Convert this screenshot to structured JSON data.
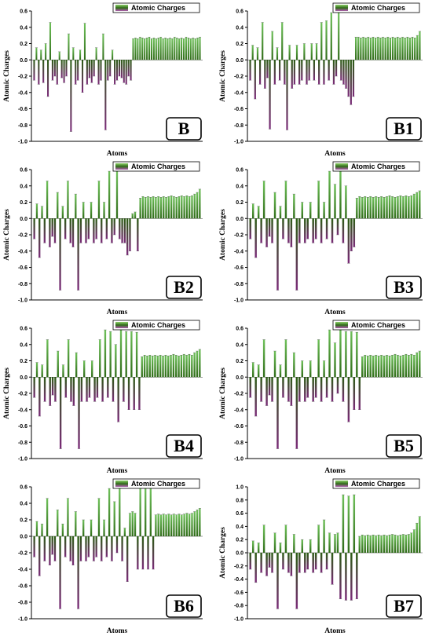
{
  "figure": {
    "panels": [
      "B",
      "B1",
      "B2",
      "B3",
      "B4",
      "B5",
      "B6",
      "B7"
    ],
    "colors": {
      "bar_top": "#6fc15a",
      "bar_mid": "#2f6b18",
      "bar_neg": "#2a5d12",
      "bar_bottom": "#7a2a78",
      "legend_hi": "#8fd16b",
      "legend_lo": "#b05ab0"
    }
  },
  "chart_data": [
    {
      "panel_label": "B",
      "type": "bar",
      "xlabel": "Atoms",
      "ylabel": "Atomic Charges",
      "legend": "Atomic Charges",
      "legend_position": "top-right",
      "ylim": [
        -1.0,
        0.6
      ],
      "yticks": [
        -1.0,
        -0.8,
        -0.6,
        -0.4,
        -0.2,
        0.0,
        0.2,
        0.4,
        0.6
      ],
      "values": [
        -0.25,
        0.15,
        -0.3,
        0.12,
        -0.28,
        0.2,
        -0.45,
        0.46,
        -0.25,
        -0.2,
        -0.3,
        0.1,
        -0.22,
        -0.28,
        -0.2,
        0.32,
        -0.88,
        0.15,
        -0.3,
        -0.25,
        0.12,
        -0.4,
        0.45,
        -0.3,
        -0.22,
        -0.28,
        -0.2,
        0.15,
        -0.3,
        -0.25,
        0.32,
        -0.86,
        -0.25,
        -0.2,
        0.12,
        -0.3,
        -0.25,
        -0.2,
        -0.22,
        -0.28,
        -0.3,
        -0.2,
        -0.25,
        0.26,
        0.27,
        0.26,
        0.28,
        0.27,
        0.26,
        0.27,
        0.28,
        0.26,
        0.27,
        0.26,
        0.27,
        0.28,
        0.26,
        0.27,
        0.26,
        0.27,
        0.26,
        0.28,
        0.27,
        0.26,
        0.27,
        0.26,
        0.28,
        0.27,
        0.26,
        0.27,
        0.26,
        0.27,
        0.28
      ]
    },
    {
      "panel_label": "B1",
      "type": "bar",
      "xlabel": "Atoms",
      "ylabel": "Atomic Charges",
      "legend": "Atomic Charges",
      "legend_position": "top-right",
      "ylim": [
        -1.0,
        0.6
      ],
      "yticks": [
        -1.0,
        -0.8,
        -0.6,
        -0.4,
        -0.2,
        0.0,
        0.2,
        0.4,
        0.6
      ],
      "values": [
        -0.25,
        0.18,
        -0.48,
        0.15,
        -0.3,
        0.46,
        -0.35,
        -0.22,
        -0.85,
        0.35,
        -0.3,
        0.15,
        -0.25,
        0.46,
        -0.3,
        -0.86,
        0.18,
        -0.35,
        -0.3,
        0.18,
        -0.3,
        -0.25,
        0.2,
        -0.3,
        -0.25,
        0.2,
        -0.25,
        0.2,
        -0.3,
        0.46,
        -0.3,
        0.48,
        -0.25,
        0.58,
        -0.3,
        -0.2,
        0.58,
        -0.25,
        -0.3,
        -0.35,
        -0.45,
        -0.55,
        -0.45,
        0.28,
        0.28,
        0.27,
        0.28,
        0.27,
        0.28,
        0.27,
        0.28,
        0.27,
        0.28,
        0.27,
        0.28,
        0.27,
        0.28,
        0.27,
        0.28,
        0.27,
        0.28,
        0.27,
        0.28,
        0.27,
        0.28,
        0.27,
        0.28,
        0.27,
        0.3,
        0.35
      ]
    },
    {
      "panel_label": "B2",
      "type": "bar",
      "xlabel": "Atoms",
      "ylabel": "Atomic Charges",
      "legend": "Atomic Charges",
      "legend_position": "top-right",
      "ylim": [
        -1.0,
        0.6
      ],
      "yticks": [
        -1.0,
        -0.8,
        -0.6,
        -0.4,
        -0.2,
        0.0,
        0.2,
        0.4,
        0.6
      ],
      "values": [
        -0.25,
        0.18,
        -0.48,
        0.15,
        -0.3,
        0.46,
        -0.35,
        -0.22,
        -0.3,
        0.32,
        -0.88,
        0.15,
        -0.25,
        0.46,
        -0.3,
        -0.35,
        0.3,
        -0.88,
        -0.3,
        0.2,
        -0.3,
        -0.25,
        0.2,
        -0.3,
        -0.25,
        0.46,
        -0.3,
        0.2,
        -0.25,
        0.58,
        -0.3,
        -0.2,
        0.58,
        -0.25,
        -0.3,
        -0.3,
        -0.45,
        -0.4,
        0.06,
        0.08,
        -0.4,
        0.25,
        0.27,
        0.26,
        0.27,
        0.26,
        0.27,
        0.26,
        0.27,
        0.26,
        0.27,
        0.26,
        0.27,
        0.28,
        0.27,
        0.26,
        0.27,
        0.28,
        0.27,
        0.28,
        0.27,
        0.28,
        0.3,
        0.32,
        0.36
      ]
    },
    {
      "panel_label": "B3",
      "type": "bar",
      "xlabel": "Atoms",
      "ylabel": "Atomic Charges",
      "legend": "Atomic Charges",
      "legend_position": "top-right",
      "ylim": [
        -1.0,
        0.6
      ],
      "yticks": [
        -1.0,
        -0.8,
        -0.6,
        -0.4,
        -0.2,
        0.0,
        0.2,
        0.4,
        0.6
      ],
      "values": [
        -0.25,
        0.18,
        -0.48,
        0.15,
        -0.3,
        0.46,
        -0.35,
        -0.22,
        -0.3,
        0.32,
        -0.88,
        0.15,
        -0.25,
        0.46,
        -0.3,
        -0.35,
        0.3,
        -0.88,
        -0.3,
        0.2,
        -0.3,
        -0.25,
        0.2,
        -0.3,
        -0.25,
        0.46,
        -0.3,
        0.2,
        -0.25,
        0.58,
        -0.3,
        0.42,
        -0.2,
        0.58,
        -0.3,
        0.4,
        -0.55,
        -0.4,
        -0.35,
        0.25,
        0.27,
        0.26,
        0.27,
        0.26,
        0.27,
        0.26,
        0.27,
        0.26,
        0.27,
        0.26,
        0.27,
        0.28,
        0.27,
        0.26,
        0.27,
        0.28,
        0.27,
        0.28,
        0.27,
        0.28,
        0.3,
        0.32,
        0.34
      ]
    },
    {
      "panel_label": "B4",
      "type": "bar",
      "xlabel": "Atoms",
      "ylabel": "Atomic Charges",
      "legend": "Atomic Charges",
      "legend_position": "top-right",
      "ylim": [
        -1.0,
        0.6
      ],
      "yticks": [
        -1.0,
        -0.8,
        -0.6,
        -0.4,
        -0.2,
        0.0,
        0.2,
        0.4,
        0.6
      ],
      "values": [
        -0.25,
        0.18,
        -0.48,
        0.15,
        -0.3,
        0.46,
        -0.35,
        -0.22,
        -0.3,
        0.32,
        -0.88,
        0.15,
        -0.25,
        0.46,
        -0.3,
        -0.35,
        0.3,
        -0.88,
        -0.3,
        0.2,
        -0.3,
        -0.25,
        0.2,
        -0.3,
        -0.25,
        0.46,
        -0.3,
        0.58,
        -0.25,
        0.56,
        -0.3,
        0.4,
        -0.55,
        0.58,
        -0.3,
        0.56,
        -0.4,
        0.56,
        -0.4,
        0.55,
        -0.4,
        0.25,
        0.27,
        0.26,
        0.27,
        0.26,
        0.27,
        0.26,
        0.27,
        0.26,
        0.27,
        0.26,
        0.27,
        0.28,
        0.27,
        0.26,
        0.27,
        0.28,
        0.27,
        0.28,
        0.27,
        0.3,
        0.32,
        0.34
      ]
    },
    {
      "panel_label": "B5",
      "type": "bar",
      "xlabel": "Atoms",
      "ylabel": "Atomic Charges",
      "legend": "Atomic Charges",
      "legend_position": "top-right",
      "ylim": [
        -1.0,
        0.6
      ],
      "yticks": [
        -1.0,
        -0.8,
        -0.6,
        -0.4,
        -0.2,
        0.0,
        0.2,
        0.4,
        0.6
      ],
      "values": [
        -0.25,
        0.18,
        -0.48,
        0.15,
        -0.3,
        0.46,
        -0.35,
        -0.22,
        -0.3,
        0.32,
        -0.88,
        0.15,
        -0.25,
        0.46,
        -0.3,
        -0.35,
        0.3,
        -0.88,
        -0.3,
        0.2,
        -0.3,
        -0.25,
        0.2,
        -0.3,
        -0.25,
        0.46,
        -0.3,
        0.2,
        -0.25,
        0.58,
        -0.3,
        0.42,
        -0.2,
        0.58,
        -0.3,
        0.56,
        -0.55,
        0.56,
        -0.4,
        0.55,
        -0.4,
        0.25,
        0.27,
        0.26,
        0.27,
        0.26,
        0.27,
        0.26,
        0.27,
        0.26,
        0.27,
        0.26,
        0.27,
        0.28,
        0.27,
        0.26,
        0.27,
        0.28,
        0.27,
        0.28,
        0.27,
        0.3,
        0.32
      ]
    },
    {
      "panel_label": "B6",
      "type": "bar",
      "xlabel": "Atoms",
      "ylabel": "",
      "legend": "Atomic Charges",
      "legend_position": "top-right",
      "ylim": [
        -1.0,
        0.6
      ],
      "yticks": [
        -1.0,
        -0.8,
        -0.6,
        -0.4,
        -0.2,
        0.0,
        0.2,
        0.4,
        0.6
      ],
      "values": [
        -0.25,
        0.18,
        -0.48,
        0.15,
        -0.3,
        0.46,
        -0.35,
        -0.22,
        -0.3,
        0.32,
        -0.88,
        0.15,
        -0.25,
        0.46,
        -0.3,
        -0.35,
        0.3,
        -0.88,
        -0.3,
        0.2,
        -0.3,
        -0.25,
        0.2,
        -0.3,
        -0.25,
        0.46,
        -0.3,
        0.2,
        -0.25,
        0.58,
        -0.3,
        0.42,
        -0.2,
        0.58,
        -0.3,
        0.1,
        -0.55,
        0.28,
        0.3,
        0.28,
        -0.4,
        0.58,
        -0.4,
        0.58,
        -0.4,
        0.58,
        -0.4,
        0.26,
        0.27,
        0.26,
        0.27,
        0.26,
        0.27,
        0.26,
        0.27,
        0.26,
        0.27,
        0.26,
        0.27,
        0.28,
        0.27,
        0.28,
        0.3,
        0.32,
        0.34
      ]
    },
    {
      "panel_label": "B7",
      "type": "bar",
      "xlabel": "Atoms",
      "ylabel": "Atomic Charges",
      "legend": "Atomic Charges",
      "legend_position": "top-right",
      "ylim": [
        -1.0,
        1.0
      ],
      "yticks": [
        -1.0,
        -0.8,
        -0.6,
        -0.4,
        -0.2,
        0.0,
        0.2,
        0.4,
        0.6,
        0.8,
        1.0
      ],
      "values": [
        -0.25,
        0.18,
        -0.45,
        0.15,
        -0.3,
        0.42,
        -0.35,
        -0.22,
        -0.3,
        0.3,
        -0.85,
        0.15,
        -0.25,
        0.42,
        -0.3,
        -0.35,
        0.28,
        -0.85,
        -0.3,
        0.2,
        -0.3,
        -0.25,
        0.2,
        -0.3,
        -0.25,
        0.42,
        -0.3,
        0.5,
        -0.25,
        0.3,
        -0.48,
        0.28,
        0.3,
        -0.7,
        0.88,
        -0.72,
        0.86,
        -0.72,
        0.88,
        -0.7,
        0.25,
        0.27,
        0.26,
        0.27,
        0.26,
        0.27,
        0.26,
        0.27,
        0.26,
        0.27,
        0.26,
        0.27,
        0.28,
        0.27,
        0.26,
        0.27,
        0.28,
        0.27,
        0.28,
        0.3,
        0.35,
        0.45,
        0.55
      ]
    }
  ]
}
